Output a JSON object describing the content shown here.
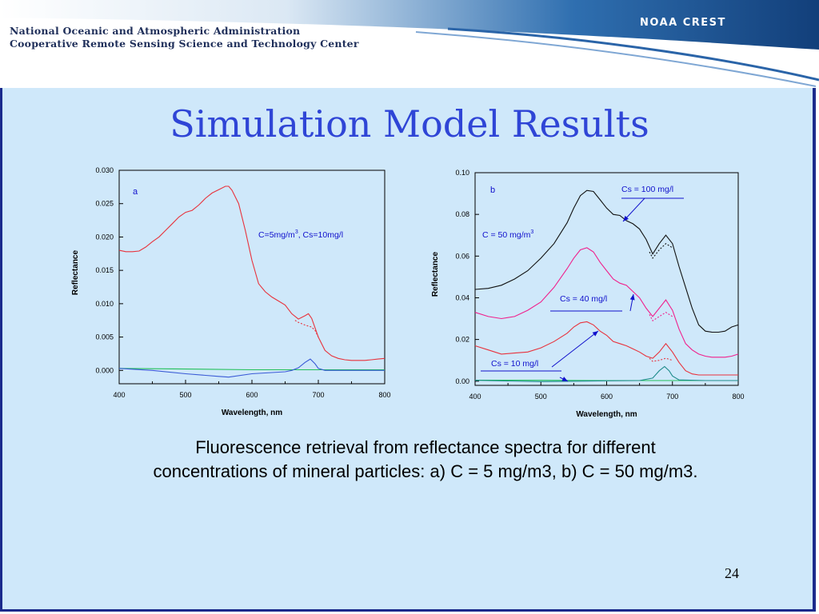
{
  "header": {
    "org_line1": "National Oceanic and Atmospheric Administration",
    "org_line2": "Cooperative Remote Sensing Science and Technology Center",
    "logo_text": "NOAA CREST"
  },
  "slide": {
    "title": "Simulation Model Results",
    "caption": "Fluorescence retrieval from reflectance spectra for different concentrations of mineral particles: a) C = 5 mg/m3, b) C = 50 mg/m3.",
    "page_number": "24"
  },
  "colors": {
    "panel_bg": "#cfe8fa",
    "panel_border": "#1a2a8c",
    "title": "#2f45d6",
    "red_series": "#e8323c",
    "pink_series": "#f0208c",
    "black_series": "#111111",
    "green_series": "#22c05a",
    "teal_series": "#1f8c8c",
    "blue_series": "#3a5ad6",
    "annotation": "#1010cc"
  },
  "chart_data": [
    {
      "type": "line",
      "panel_label": "a",
      "xlabel": "Wavelength, nm",
      "ylabel": "Reflectance",
      "xlim": [
        400,
        800
      ],
      "ylim": [
        -0.002,
        0.03
      ],
      "xticks": [
        400,
        500,
        600,
        700,
        800
      ],
      "yticks": [
        0.0,
        0.005,
        0.01,
        0.015,
        0.02,
        0.025,
        0.03
      ],
      "ytick_labels": [
        "0.000",
        "0.005",
        "0.010",
        "0.015",
        "0.020",
        "0.025",
        "0.030"
      ],
      "annotations": [
        {
          "text": "C=5mg/m",
          "sup": "3",
          "rest": ", Cs=10mg/l",
          "x": 525,
          "y": 0.0202
        }
      ],
      "series": [
        {
          "style": "solid",
          "color": "red",
          "x": [
            400,
            410,
            420,
            430,
            440,
            450,
            460,
            470,
            480,
            490,
            500,
            510,
            520,
            530,
            540,
            550,
            560,
            565,
            570,
            580,
            590,
            600,
            610,
            620,
            630,
            640,
            650,
            660,
            670,
            680,
            685,
            690,
            700,
            710,
            720,
            730,
            740,
            750,
            760,
            770,
            780,
            790,
            800
          ],
          "y": [
            0.018,
            0.0178,
            0.0178,
            0.0179,
            0.0185,
            0.0193,
            0.02,
            0.021,
            0.022,
            0.023,
            0.0237,
            0.024,
            0.0248,
            0.0258,
            0.0266,
            0.0271,
            0.0276,
            0.0276,
            0.027,
            0.025,
            0.021,
            0.0165,
            0.013,
            0.0118,
            0.011,
            0.0104,
            0.0098,
            0.0085,
            0.0077,
            0.0082,
            0.0085,
            0.0078,
            0.005,
            0.003,
            0.0022,
            0.0018,
            0.0016,
            0.0015,
            0.0015,
            0.0015,
            0.0016,
            0.0017,
            0.0018
          ]
        },
        {
          "style": "dashed",
          "color": "red",
          "x": [
            665,
            670,
            680,
            690,
            695,
            700
          ],
          "y": [
            0.0075,
            0.0072,
            0.0068,
            0.0065,
            0.006,
            0.005
          ]
        },
        {
          "style": "solid",
          "color": "green",
          "x": [
            400,
            500,
            600,
            650,
            680,
            700,
            750,
            800
          ],
          "y": [
            0.0003,
            0.0002,
            0.0001,
            0.0001,
            0.0001,
            0.0001,
            0.0001,
            0.0001
          ]
        },
        {
          "style": "solid",
          "color": "blue",
          "x": [
            400,
            450,
            500,
            550,
            565,
            600,
            650,
            660,
            670,
            680,
            688,
            695,
            700,
            710,
            750,
            800
          ],
          "y": [
            0.0003,
            0.0,
            -0.0005,
            -0.0009,
            -0.001,
            -0.0005,
            -0.0002,
            0.0,
            0.0004,
            0.0012,
            0.0017,
            0.001,
            0.0003,
            0.0,
            0.0,
            0.0
          ]
        }
      ]
    },
    {
      "type": "line",
      "panel_label": "b",
      "xlabel": "Wavelength, nm",
      "ylabel": "Reflectance",
      "xlim": [
        400,
        800
      ],
      "ylim": [
        -0.002,
        0.1
      ],
      "xticks": [
        400,
        500,
        600,
        700,
        800
      ],
      "yticks": [
        0.0,
        0.02,
        0.04,
        0.06,
        0.08,
        0.1
      ],
      "ytick_labels": [
        "0.00",
        "0.02",
        "0.04",
        "0.06",
        "0.08",
        "0.10"
      ],
      "annotations": [
        {
          "text": "Cs = 100 mg/l"
        },
        {
          "text": "C = 50 mg/m",
          "sup": "3"
        },
        {
          "text": "Cs = 40 mg/l"
        },
        {
          "text": "Cs = 10 mg/l"
        }
      ],
      "series": [
        {
          "style": "solid",
          "color": "black",
          "x": [
            400,
            420,
            440,
            460,
            480,
            500,
            520,
            540,
            550,
            560,
            570,
            580,
            590,
            600,
            610,
            620,
            630,
            640,
            650,
            660,
            670,
            680,
            690,
            700,
            710,
            720,
            730,
            740,
            750,
            760,
            770,
            780,
            790,
            800
          ],
          "y": [
            0.044,
            0.0445,
            0.046,
            0.049,
            0.053,
            0.059,
            0.066,
            0.076,
            0.083,
            0.089,
            0.0915,
            0.091,
            0.087,
            0.083,
            0.08,
            0.0795,
            0.077,
            0.0755,
            0.073,
            0.068,
            0.061,
            0.066,
            0.07,
            0.066,
            0.055,
            0.045,
            0.035,
            0.027,
            0.024,
            0.0235,
            0.0235,
            0.024,
            0.026,
            0.027
          ]
        },
        {
          "style": "dashed",
          "color": "black",
          "x": [
            665,
            670,
            680,
            690,
            700
          ],
          "y": [
            0.062,
            0.059,
            0.063,
            0.066,
            0.064
          ]
        },
        {
          "style": "solid",
          "color": "pink",
          "x": [
            400,
            420,
            440,
            460,
            480,
            500,
            520,
            540,
            550,
            560,
            570,
            580,
            590,
            600,
            610,
            620,
            630,
            640,
            650,
            660,
            670,
            680,
            690,
            700,
            710,
            720,
            730,
            740,
            750,
            760,
            770,
            780,
            790,
            800
          ],
          "y": [
            0.033,
            0.031,
            0.03,
            0.031,
            0.034,
            0.038,
            0.045,
            0.054,
            0.059,
            0.063,
            0.064,
            0.062,
            0.057,
            0.053,
            0.049,
            0.047,
            0.046,
            0.043,
            0.04,
            0.035,
            0.031,
            0.035,
            0.039,
            0.034,
            0.025,
            0.018,
            0.015,
            0.013,
            0.012,
            0.0115,
            0.0115,
            0.0115,
            0.012,
            0.013
          ]
        },
        {
          "style": "dashed",
          "color": "pink",
          "x": [
            665,
            670,
            680,
            690,
            700
          ],
          "y": [
            0.032,
            0.029,
            0.031,
            0.033,
            0.031
          ]
        },
        {
          "style": "solid",
          "color": "red",
          "x": [
            400,
            420,
            440,
            460,
            480,
            500,
            520,
            540,
            550,
            560,
            570,
            580,
            590,
            600,
            610,
            620,
            630,
            640,
            650,
            660,
            670,
            680,
            690,
            700,
            710,
            720,
            730,
            740,
            750,
            760,
            770,
            780,
            790,
            800
          ],
          "y": [
            0.017,
            0.015,
            0.013,
            0.0135,
            0.014,
            0.016,
            0.019,
            0.023,
            0.026,
            0.028,
            0.0285,
            0.027,
            0.024,
            0.022,
            0.019,
            0.018,
            0.017,
            0.0155,
            0.014,
            0.012,
            0.011,
            0.014,
            0.018,
            0.014,
            0.009,
            0.005,
            0.0035,
            0.003,
            0.003,
            0.003,
            0.003,
            0.003,
            0.003,
            0.003
          ]
        },
        {
          "style": "dashed",
          "color": "red",
          "x": [
            665,
            670,
            680,
            690,
            700
          ],
          "y": [
            0.011,
            0.0095,
            0.01,
            0.011,
            0.01
          ]
        },
        {
          "style": "solid",
          "color": "green",
          "x": [
            400,
            500,
            600,
            650,
            670,
            680,
            700,
            750,
            800
          ],
          "y": [
            0.0005,
            0.0004,
            0.0003,
            0.0003,
            0.0003,
            0.0003,
            0.0003,
            0.0003,
            0.0003
          ]
        },
        {
          "style": "solid",
          "color": "teal",
          "x": [
            400,
            500,
            600,
            650,
            670,
            680,
            688,
            695,
            700,
            710,
            750,
            800
          ],
          "y": [
            0.0004,
            -0.0002,
            0.0002,
            0.0003,
            0.0015,
            0.005,
            0.007,
            0.005,
            0.0025,
            0.0006,
            0.0003,
            0.0003
          ]
        }
      ]
    }
  ]
}
